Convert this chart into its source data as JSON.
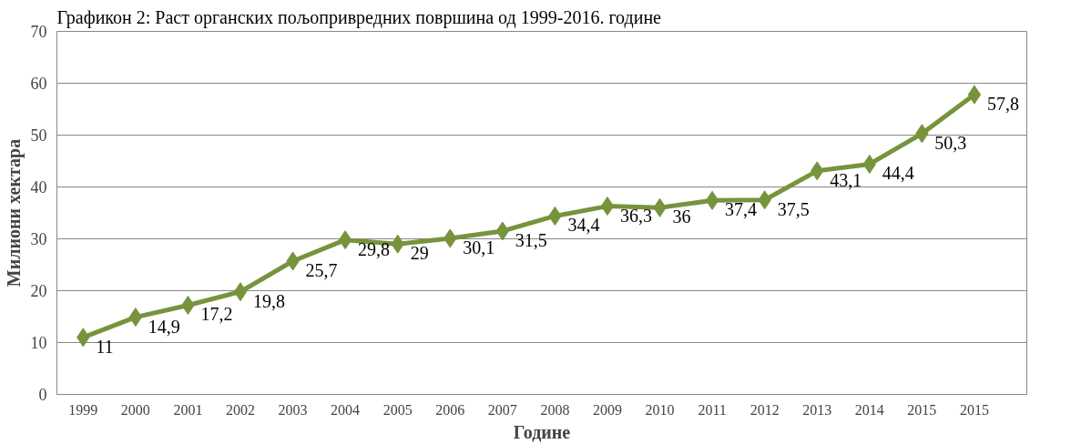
{
  "chart_data": {
    "type": "line",
    "title": "Графикон 2: Раст органских пољопривредних површина од 1999-2016. године",
    "xlabel": "Године",
    "ylabel": "Милиони хектара",
    "categories": [
      "1999",
      "2000",
      "2001",
      "2002",
      "2003",
      "2004",
      "2005",
      "2006",
      "2007",
      "2008",
      "2009",
      "2010",
      "2011",
      "2012",
      "2013",
      "2014",
      "2015",
      "2015"
    ],
    "series": [
      {
        "color": "#77933c",
        "values": [
          11,
          14.9,
          17.2,
          19.8,
          25.7,
          29.8,
          29,
          30.1,
          31.5,
          34.4,
          36.3,
          36,
          37.4,
          37.5,
          43.1,
          44.4,
          50.3,
          57.8
        ]
      }
    ],
    "value_labels": [
      "11",
      "14,9",
      "17,2",
      "19,8",
      "25,7",
      "29,8",
      "29",
      "30,1",
      "31,5",
      "34,4",
      "36,3",
      "36",
      "37,4",
      "37,5",
      "43,1",
      "44,4",
      "50,3",
      "57,8"
    ],
    "ylim": [
      0,
      70
    ],
    "yticks": [
      0,
      10,
      20,
      30,
      40,
      50,
      60,
      70
    ],
    "grid": "y",
    "marker": "diamond",
    "line_style": "solid"
  }
}
